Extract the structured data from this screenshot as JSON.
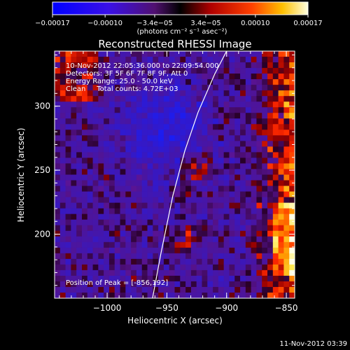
{
  "chart_data": {
    "type": "heatmap",
    "title": "Reconstructed RHESSI Image",
    "xlabel": "Heliocentric X (arcsec)",
    "ylabel": "Heliocentric Y (arcsec)",
    "xlim": [
      -1044,
      -843
    ],
    "ylim": [
      150,
      343
    ],
    "xticks": [
      -1000,
      -950,
      -900,
      -850
    ],
    "xtick_labels": [
      "−1000",
      "−950",
      "−900",
      "−850"
    ],
    "yticks": [
      200,
      250,
      300
    ],
    "ytick_labels": [
      "200",
      "250",
      "300"
    ],
    "colorbar": {
      "range": [
        -0.00017,
        0.00017
      ],
      "ticks": [
        -0.00017,
        -0.0001,
        -3.4e-05,
        3.4e-05,
        0.0001,
        0.00017
      ],
      "tick_labels": [
        "−0.00017",
        "−0.00010",
        "−3.4e−05",
        "3.4e−05",
        "0.00010",
        "0.00017"
      ],
      "units_label": "(photons cm⁻² s⁻¹ asec⁻²)",
      "colors": [
        "#0000ff",
        "#5000d0",
        "#000000",
        "#ff0000",
        "#ffa000",
        "#ffffe0"
      ]
    },
    "annotations": [
      "10-Nov-2012 22:05:36.000 to 22:09:54.000",
      "Detectors: 3F 5F 6F 7F 8F 9F, Att 0",
      "Energy Range: 25.0 - 50.0 keV",
      "Clean     Total counts: 4.72E+03",
      "Position of Peak = [-856,192]"
    ],
    "peak": [
      -856,
      192
    ],
    "limb_points": [
      [
        -962,
        150
      ],
      [
        -955,
        185
      ],
      [
        -945,
        230
      ],
      [
        -935,
        265
      ],
      [
        -924,
        295
      ],
      [
        -910,
        325
      ],
      [
        -900,
        343
      ]
    ]
  },
  "footer": {
    "timestamp": "11-Nov-2012 03:39"
  }
}
